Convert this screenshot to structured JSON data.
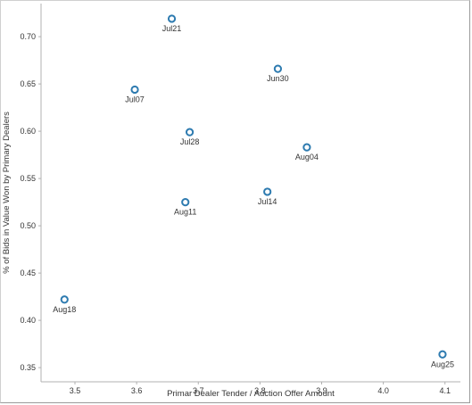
{
  "chart_data": {
    "type": "scatter",
    "xlabel": "Primar Dealer Tender / Auction Offer Amount",
    "ylabel": "% of Bids in Value Won by Primary Dealers",
    "xlim": [
      3.445,
      4.125
    ],
    "ylim": [
      0.335,
      0.735
    ],
    "xticks": [
      3.5,
      3.6,
      3.7,
      3.8,
      3.9,
      4.0,
      4.1
    ],
    "xtick_labels": [
      "3.5",
      "3.6",
      "3.7",
      "3.8",
      "3.9",
      "4.0",
      "4.1"
    ],
    "yticks": [
      0.35,
      0.4,
      0.45,
      0.5,
      0.55,
      0.6,
      0.65,
      0.7
    ],
    "ytick_labels": [
      "0.35",
      "0.40",
      "0.45",
      "0.50",
      "0.55",
      "0.60",
      "0.65",
      "0.70"
    ],
    "grid": false,
    "legend": "none",
    "marker_color": "#2e7bb0",
    "points": [
      {
        "label": "Jul21",
        "x": 3.657,
        "y": 0.719
      },
      {
        "label": "Jun30",
        "x": 3.829,
        "y": 0.666
      },
      {
        "label": "Jul07",
        "x": 3.597,
        "y": 0.644
      },
      {
        "label": "Jul28",
        "x": 3.686,
        "y": 0.599
      },
      {
        "label": "Aug04",
        "x": 3.876,
        "y": 0.583
      },
      {
        "label": "Jul14",
        "x": 3.812,
        "y": 0.536
      },
      {
        "label": "Aug11",
        "x": 3.679,
        "y": 0.525
      },
      {
        "label": "Aug18",
        "x": 3.483,
        "y": 0.422
      },
      {
        "label": "Aug25",
        "x": 4.096,
        "y": 0.364
      }
    ]
  }
}
